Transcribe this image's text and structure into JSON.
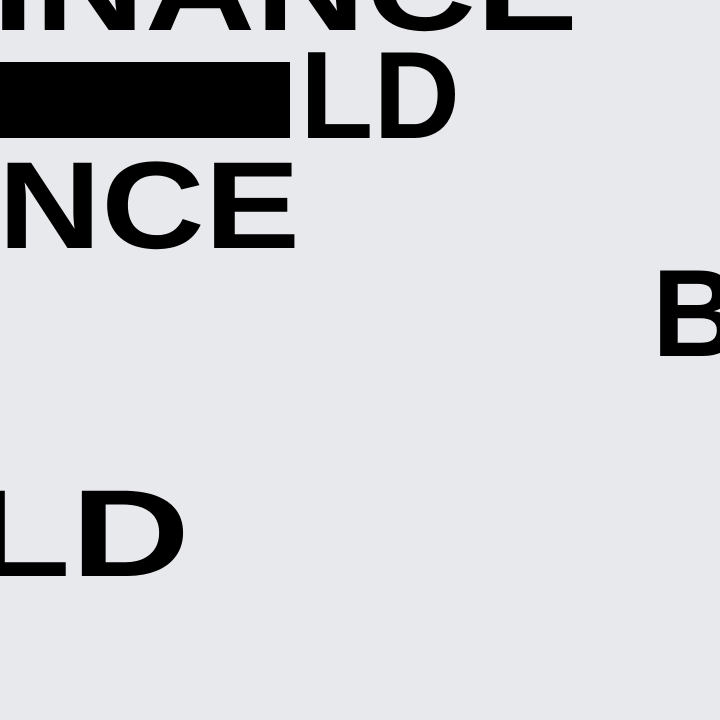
{
  "texts": [
    "INANCE",
    "LD",
    "NCE",
    "B",
    "LD"
  ]
}
